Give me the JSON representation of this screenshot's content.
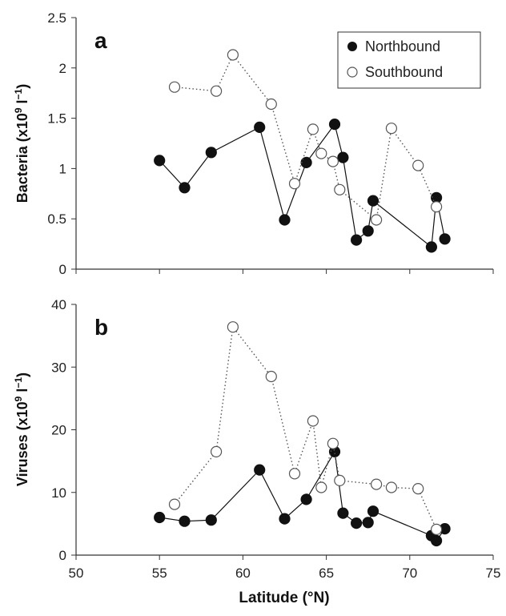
{
  "chart_data": [
    {
      "type": "line",
      "panel_label": "a",
      "ylabel": "Bacteria (x10^9 l^-1)",
      "ylabel_parts": {
        "main": "Bacteria (x10",
        "exp1": "9",
        "mid": " l",
        "exp2": "−1",
        "end": ")"
      },
      "xlim": [
        50,
        75
      ],
      "ylim": [
        0,
        2.5
      ],
      "yticks": [
        "0",
        "0.5",
        "1",
        "1.5",
        "2",
        "2.5"
      ],
      "ytick_values": [
        0,
        0.5,
        1,
        1.5,
        2,
        2.5
      ],
      "legend": {
        "placement": "top-right",
        "entries": [
          "Northbound",
          "Southbound"
        ]
      },
      "series": [
        {
          "name": "Northbound",
          "marker": "filled-circle",
          "line": "solid",
          "points": [
            [
              55.0,
              1.08
            ],
            [
              56.5,
              0.81
            ],
            [
              58.1,
              1.16
            ],
            [
              61.0,
              1.41
            ],
            [
              62.5,
              0.49
            ],
            [
              63.8,
              1.06
            ],
            [
              65.5,
              1.44
            ],
            [
              66.0,
              1.11
            ],
            [
              66.8,
              0.29
            ],
            [
              67.5,
              0.38
            ],
            [
              67.8,
              0.68
            ],
            [
              71.3,
              0.22
            ],
            [
              71.6,
              0.71
            ],
            [
              72.1,
              0.3
            ]
          ]
        },
        {
          "name": "Southbound",
          "marker": "open-circle",
          "line": "dotted",
          "points": [
            [
              55.9,
              1.81
            ],
            [
              58.4,
              1.77
            ],
            [
              59.4,
              2.13
            ],
            [
              61.7,
              1.64
            ],
            [
              63.1,
              0.85
            ],
            [
              64.2,
              1.39
            ],
            [
              64.7,
              1.15
            ],
            [
              65.4,
              1.07
            ],
            [
              65.8,
              0.79
            ],
            [
              68.0,
              0.49
            ],
            [
              68.9,
              1.4
            ],
            [
              70.5,
              1.03
            ],
            [
              71.6,
              0.62
            ]
          ]
        }
      ]
    },
    {
      "type": "line",
      "panel_label": "b",
      "ylabel": "Viruses (x10^9 l^-1)",
      "ylabel_parts": {
        "main": "Viruses (x10",
        "exp1": "9",
        "mid": " l",
        "exp2": "−1",
        "end": ")"
      },
      "xlabel": "Latitude (°N)",
      "xlim": [
        50,
        75
      ],
      "ylim": [
        0,
        40
      ],
      "xticks": [
        "50",
        "55",
        "60",
        "65",
        "70",
        "75"
      ],
      "xtick_values": [
        50,
        55,
        60,
        65,
        70,
        75
      ],
      "yticks": [
        "0",
        "10",
        "20",
        "30",
        "40"
      ],
      "ytick_values": [
        0,
        10,
        20,
        30,
        40
      ],
      "series": [
        {
          "name": "Northbound",
          "marker": "filled-circle",
          "line": "solid",
          "points": [
            [
              55.0,
              6.0
            ],
            [
              56.5,
              5.4
            ],
            [
              58.1,
              5.6
            ],
            [
              61.0,
              13.6
            ],
            [
              62.5,
              5.8
            ],
            [
              63.8,
              8.9
            ],
            [
              65.5,
              16.5
            ],
            [
              66.0,
              6.7
            ],
            [
              66.8,
              5.1
            ],
            [
              67.5,
              5.2
            ],
            [
              67.8,
              7.0
            ],
            [
              71.3,
              3.1
            ],
            [
              71.6,
              2.3
            ],
            [
              72.1,
              4.2
            ]
          ]
        },
        {
          "name": "Southbound",
          "marker": "open-circle",
          "line": "dotted",
          "points": [
            [
              55.9,
              8.1
            ],
            [
              58.4,
              16.5
            ],
            [
              59.4,
              36.4
            ],
            [
              61.7,
              28.5
            ],
            [
              63.1,
              13.0
            ],
            [
              64.2,
              21.4
            ],
            [
              64.7,
              10.8
            ],
            [
              65.4,
              17.8
            ],
            [
              65.8,
              11.9
            ],
            [
              68.0,
              11.3
            ],
            [
              68.9,
              10.8
            ],
            [
              70.5,
              10.6
            ],
            [
              71.6,
              4.1
            ]
          ]
        }
      ]
    }
  ],
  "colors": {
    "axis": "#333333",
    "northbound": "#111111",
    "southbound_fill": "#ffffff",
    "southbound_stroke": "#555555"
  }
}
